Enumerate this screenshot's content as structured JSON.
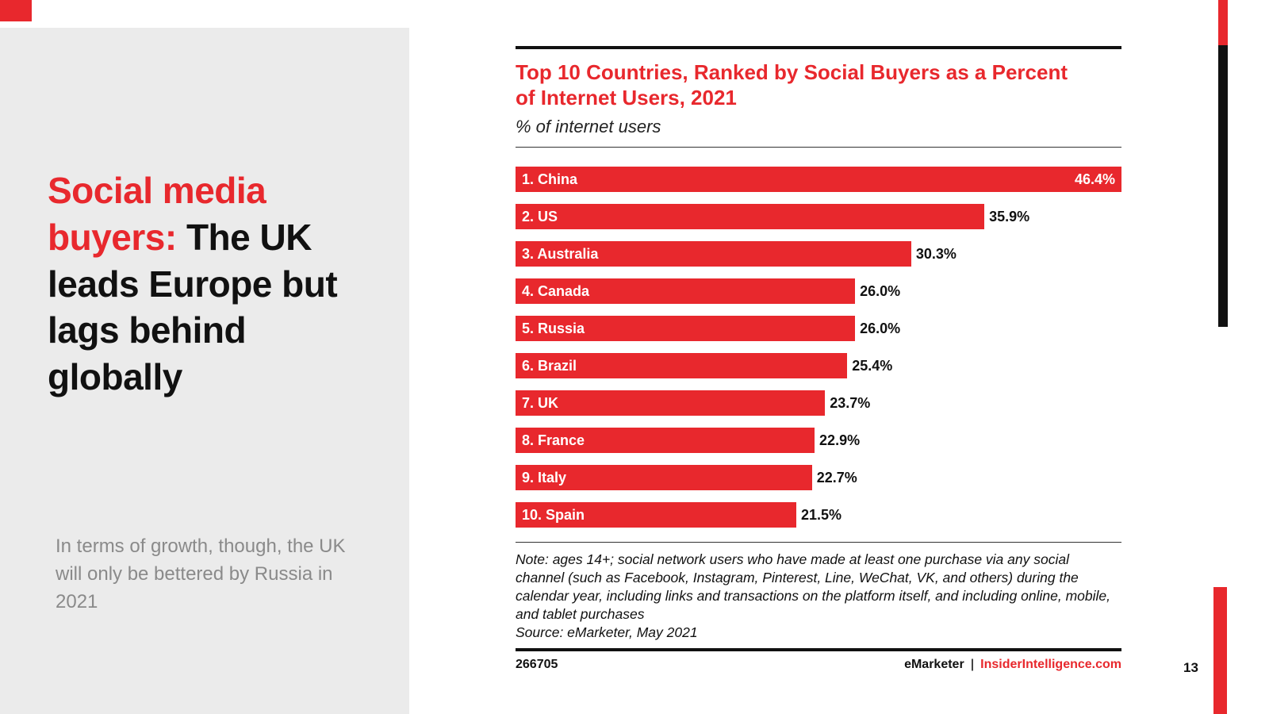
{
  "slide": {
    "title_red": "Social media buyers:",
    "title_black": " The UK leads Europe but lags behind globally",
    "subtitle": "In terms of growth, though, the UK will only be bettered by Russia in 2021",
    "page_number": "13"
  },
  "chart_data": {
    "type": "bar",
    "orientation": "horizontal",
    "title": "Top 10 Countries, Ranked by Social Buyers as a Percent of Internet Users, 2021",
    "subtitle": "% of internet users",
    "categories": [
      "1. China",
      "2. US",
      "3. Australia",
      "4. Canada",
      "5. Russia",
      "6. Brazil",
      "7. UK",
      "8. France",
      "9. Italy",
      "10. Spain"
    ],
    "values": [
      46.4,
      35.9,
      30.3,
      26.0,
      26.0,
      25.4,
      23.7,
      22.9,
      22.7,
      21.5
    ],
    "value_labels": [
      "46.4%",
      "35.9%",
      "30.3%",
      "26.0%",
      "26.0%",
      "25.4%",
      "23.7%",
      "22.9%",
      "22.7%",
      "21.5%"
    ],
    "xlim": [
      0,
      46.4
    ],
    "legend": "none",
    "grid": "off",
    "note": "Note: ages 14+; social network users who have made at least one purchase via any social channel (such as Facebook, Instagram, Pinterest, Line, WeChat, VK, and others) during the calendar year, including links and transactions on the platform itself, and including online, mobile, and tablet purchases",
    "source": "Source: eMarketer, May 2021",
    "chart_id": "266705",
    "brand_left": "eMarketer",
    "brand_divider": "|",
    "brand_right": "InsiderIntelligence.com"
  },
  "colors": {
    "accent_red": "#e8282d",
    "panel_gray": "#ebebeb",
    "subtitle_gray": "#8a8a8a",
    "ink": "#111111"
  }
}
